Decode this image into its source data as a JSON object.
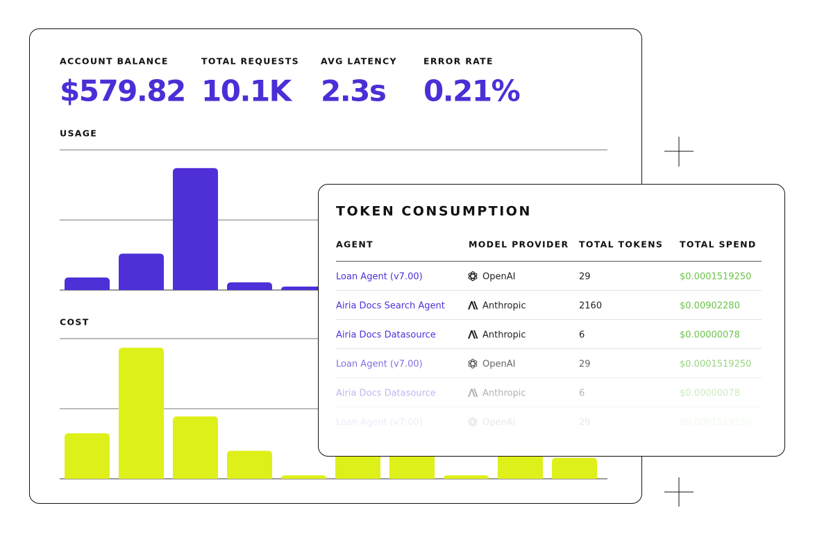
{
  "stats": [
    {
      "label": "ACCOUNT BALANCE",
      "value": "$579.82"
    },
    {
      "label": "TOTAL REQUESTS",
      "value": "10.1K"
    },
    {
      "label": "AVG LATENCY",
      "value": "2.3s"
    },
    {
      "label": "ERROR RATE",
      "value": "0.21%"
    }
  ],
  "charts": [
    {
      "type": "bar",
      "title": "USAGE",
      "color": "#4f2fd8",
      "values": [
        0.18,
        0.52,
        1.74,
        0.11,
        0.05,
        null,
        null,
        null,
        null,
        null
      ],
      "ylim": [
        0,
        2
      ],
      "yticks": [
        0,
        1,
        2
      ],
      "grid": true
    },
    {
      "type": "bar",
      "title": "COST",
      "color": "#def019",
      "values": [
        0.65,
        1.87,
        0.89,
        0.4,
        0.05,
        0.4,
        0.4,
        0.05,
        0.35,
        0.3
      ],
      "ylim": [
        0,
        2
      ],
      "yticks": [
        0,
        1,
        2
      ],
      "grid": true
    }
  ],
  "token_table": {
    "title": "TOKEN CONSUMPTION",
    "columns": [
      "AGENT",
      "MODEL PROVIDER",
      "TOTAL TOKENS",
      "TOTAL SPEND"
    ],
    "rows": [
      [
        "Loan Agent (v7.00)",
        "OpenAI",
        "29",
        "$0.0001519250"
      ],
      [
        "Airia Docs Search Agent",
        "Anthropic",
        "2160",
        "$0.00902280"
      ],
      [
        "Airia Docs Datasource",
        "Anthropic",
        "6",
        "$0.00000078"
      ],
      [
        "Loan Agent (v7.00)",
        "OpenAI",
        "29",
        "$0.0001519250"
      ],
      [
        "Airia Docs Datasource",
        "Anthropic",
        "6",
        "$0.00000078"
      ],
      [
        "Loan Agent (v7.00)",
        "OpenAI",
        "29",
        "$0.0001519250"
      ]
    ]
  }
}
